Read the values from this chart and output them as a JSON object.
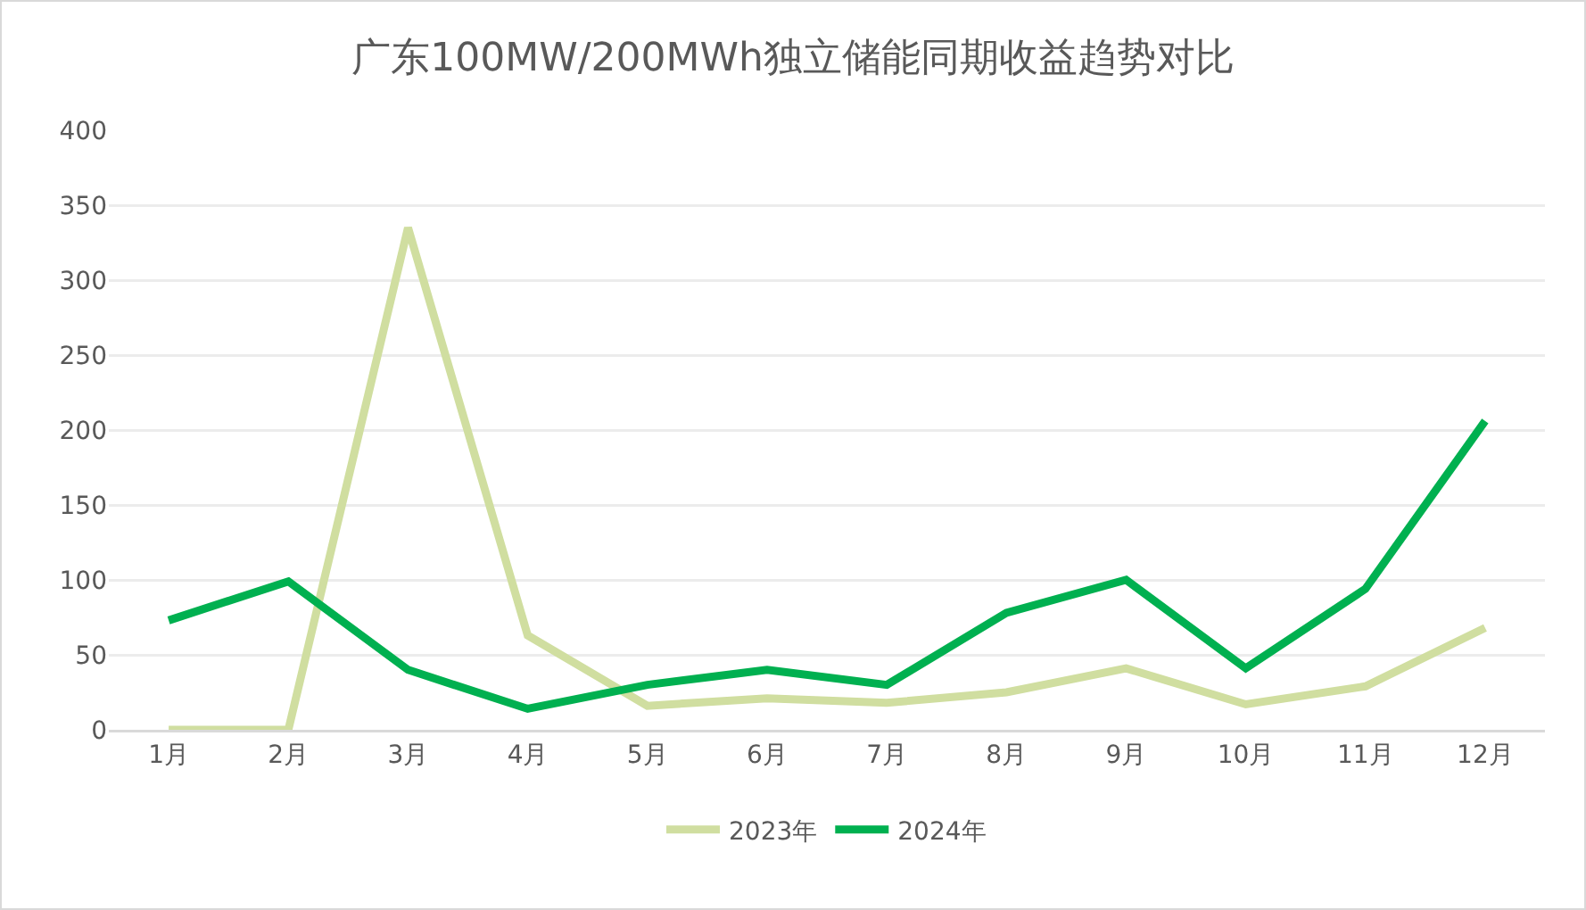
{
  "chart_data": {
    "type": "line",
    "title": "广东100MW/200MWh独立储能同期收益趋势对比",
    "categories": [
      "1月",
      "2月",
      "3月",
      "4月",
      "5月",
      "6月",
      "7月",
      "8月",
      "9月",
      "10月",
      "11月",
      "12月"
    ],
    "series": [
      {
        "name": "2023年",
        "color": "#d0dea0",
        "values": [
          0,
          0,
          335,
          63,
          16,
          21,
          18,
          25,
          41,
          17,
          29,
          68
        ]
      },
      {
        "name": "2024年",
        "color": "#00b050",
        "values": [
          73,
          99,
          40,
          14,
          30,
          40,
          30,
          78,
          100,
          41,
          94,
          206
        ]
      }
    ],
    "ylim": [
      0,
      400
    ],
    "yticks": [
      0,
      50,
      100,
      150,
      200,
      250,
      300,
      350,
      400
    ],
    "grid": "y",
    "legend": "bottom",
    "marker": "none",
    "line_style": "solid"
  }
}
